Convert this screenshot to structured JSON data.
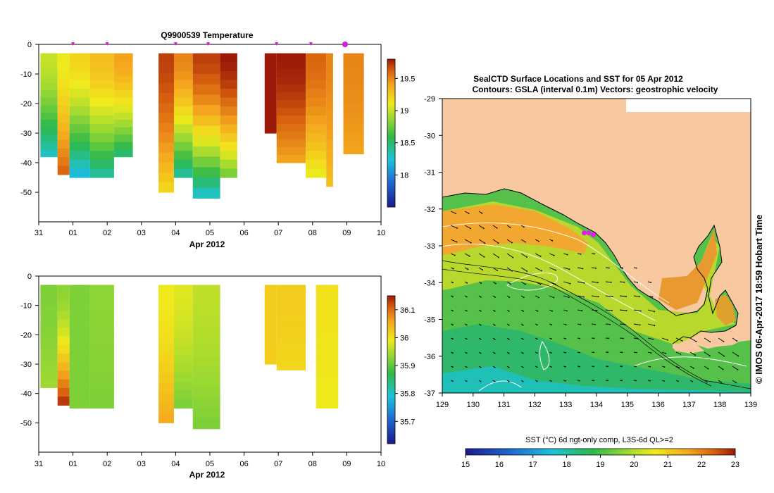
{
  "chart_data": [
    {
      "type": "heatmap",
      "panel": "profile-temperature",
      "title": "Q9900539  Temperature",
      "xlabel": "Apr 2012",
      "x_ticks": [
        "31",
        "01",
        "02",
        "03",
        "04",
        "05",
        "06",
        "07",
        "08",
        "09",
        "10"
      ],
      "x_range_days": [
        0,
        10
      ],
      "ylim": [
        -60,
        0
      ],
      "y_ticks": [
        "0",
        "-10",
        "-20",
        "-30",
        "-40",
        "-50"
      ],
      "profile_markers_days": [
        1.0,
        2.0,
        4.0,
        4.95,
        6.95,
        7.95
      ],
      "latest_profile_day": 8.95,
      "colorbar": {
        "ticks": [
          "18",
          "18.5",
          "19",
          "19.5"
        ],
        "range": [
          17.5,
          19.8
        ]
      },
      "profiles": [
        {
          "start": 0.05,
          "end": 0.55,
          "depth": 38,
          "surface": 19.0,
          "bottom": 18.3
        },
        {
          "start": 0.55,
          "end": 0.9,
          "depth": 44,
          "surface": 19.1,
          "bottom": 19.6
        },
        {
          "start": 0.9,
          "end": 1.5,
          "depth": 45,
          "surface": 19.2,
          "bottom": 18.2
        },
        {
          "start": 1.5,
          "end": 2.2,
          "depth": 45,
          "surface": 19.3,
          "bottom": 18.4
        },
        {
          "start": 2.2,
          "end": 2.75,
          "depth": 38,
          "surface": 19.4,
          "bottom": 18.5
        },
        {
          "start": 3.5,
          "end": 3.95,
          "depth": 50,
          "surface": 19.7,
          "bottom": 19.2
        },
        {
          "start": 3.95,
          "end": 4.5,
          "depth": 45,
          "surface": 19.5,
          "bottom": 18.4
        },
        {
          "start": 4.5,
          "end": 5.3,
          "depth": 52,
          "surface": 19.7,
          "bottom": 18.3
        },
        {
          "start": 5.3,
          "end": 5.8,
          "depth": 45,
          "surface": 19.8,
          "bottom": 18.8
        },
        {
          "start": 6.6,
          "end": 6.95,
          "depth": 30,
          "surface": 19.8,
          "bottom": 19.8
        },
        {
          "start": 6.95,
          "end": 7.8,
          "depth": 40,
          "surface": 19.8,
          "bottom": 19.4
        },
        {
          "start": 7.8,
          "end": 8.4,
          "depth": 45,
          "surface": 19.6,
          "bottom": 19.1
        },
        {
          "start": 8.4,
          "end": 8.6,
          "depth": 48,
          "surface": 19.5,
          "bottom": 19.3
        },
        {
          "start": 8.9,
          "end": 9.5,
          "depth": 37,
          "surface": 19.5,
          "bottom": 19.4
        }
      ]
    },
    {
      "type": "heatmap",
      "panel": "profile-salinity",
      "title": "",
      "xlabel": "Apr 2012",
      "x_ticks": [
        "31",
        "01",
        "02",
        "03",
        "04",
        "05",
        "06",
        "07",
        "08",
        "09",
        "10"
      ],
      "x_range_days": [
        0,
        10
      ],
      "ylim": [
        -60,
        0
      ],
      "y_ticks": [
        "0",
        "-10",
        "-20",
        "-30",
        "-40",
        "-50"
      ],
      "colorbar": {
        "ticks": [
          "35.7",
          "35.8",
          "35.9",
          "36",
          "36.1"
        ],
        "range": [
          35.62,
          36.15
        ]
      },
      "profiles": [
        {
          "start": 0.05,
          "end": 0.55,
          "depth": 38,
          "surface": 35.92,
          "bottom": 35.94
        },
        {
          "start": 0.55,
          "end": 0.9,
          "depth": 44,
          "surface": 35.93,
          "bottom": 36.13
        },
        {
          "start": 0.9,
          "end": 1.5,
          "depth": 45,
          "surface": 35.92,
          "bottom": 35.92
        },
        {
          "start": 1.5,
          "end": 2.2,
          "depth": 45,
          "surface": 35.93,
          "bottom": 35.92
        },
        {
          "start": 3.5,
          "end": 3.95,
          "depth": 50,
          "surface": 35.99,
          "bottom": 36.05
        },
        {
          "start": 3.95,
          "end": 4.5,
          "depth": 45,
          "surface": 35.98,
          "bottom": 35.92
        },
        {
          "start": 4.5,
          "end": 5.3,
          "depth": 52,
          "surface": 35.96,
          "bottom": 35.92
        },
        {
          "start": 6.6,
          "end": 6.95,
          "depth": 30,
          "surface": 36.02,
          "bottom": 36.02
        },
        {
          "start": 6.95,
          "end": 7.8,
          "depth": 32,
          "surface": 36.02,
          "bottom": 36.01
        },
        {
          "start": 8.1,
          "end": 8.75,
          "depth": 45,
          "surface": 36.0,
          "bottom": 35.99
        }
      ]
    },
    {
      "type": "heatmap",
      "panel": "sst-map",
      "title": "SealCTD Surface Locations and SST for 05 Apr 2012",
      "subtitle": "Contours: GSLA (interval 0.1m) Vectors: geostrophic velocity",
      "x_ticks": [
        "129",
        "130",
        "131",
        "132",
        "133",
        "134",
        "135",
        "136",
        "137",
        "138",
        "139"
      ],
      "y_ticks": [
        "-29",
        "-30",
        "-31",
        "-32",
        "-33",
        "-34",
        "-35",
        "-36",
        "-37"
      ],
      "xlim": [
        129,
        139
      ],
      "ylim": [
        -37,
        -29
      ],
      "seal_locations": [
        [
          133.6,
          -32.65
        ],
        [
          133.75,
          -32.65
        ],
        [
          133.9,
          -32.7
        ]
      ],
      "colorbar": {
        "label": "SST (°C) 6d ngt-only comp, L3S-6d QL>=2",
        "ticks": [
          "15",
          "16",
          "17",
          "18",
          "19",
          "20",
          "21",
          "22",
          "23"
        ],
        "range": [
          15,
          23
        ]
      }
    }
  ],
  "watermark": "© IMOS 06-Apr-2017 18:59 Hobart Time"
}
